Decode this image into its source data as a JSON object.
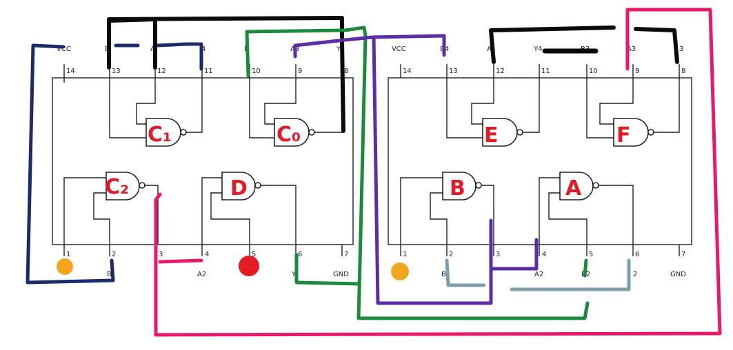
{
  "colors": {
    "navy": "#1b2a6b",
    "black": "#0a0a0a",
    "green": "#1c8a3a",
    "purple": "#5b2ea6",
    "pink": "#e8186b",
    "steel": "#7f9eab",
    "red_gate_label": "#e01a26",
    "yellow_dot": "#f3a51d",
    "red_dot": "#e31b23"
  },
  "chips": [
    {
      "pins_top": [
        {
          "num": "14",
          "label": "VCC"
        },
        {
          "num": "13",
          "label": "B"
        },
        {
          "num": "12",
          "label": "A"
        },
        {
          "num": "11",
          "label": "4"
        },
        {
          "num": "10",
          "label": "B"
        },
        {
          "num": "9",
          "label": "A3"
        },
        {
          "num": "8",
          "label": "Y"
        }
      ],
      "pins_bottom": [
        {
          "num": "1",
          "label": ""
        },
        {
          "num": "2",
          "label": "B"
        },
        {
          "num": "3",
          "label": ""
        },
        {
          "num": "4",
          "label": "A2"
        },
        {
          "num": "5",
          "label": ""
        },
        {
          "num": "6",
          "label": "Y"
        },
        {
          "num": "7",
          "label": "GND"
        }
      ],
      "gates": [
        "C₁",
        "C₀",
        "C₂",
        "D"
      ]
    },
    {
      "pins_top": [
        {
          "num": "14",
          "label": "VCC"
        },
        {
          "num": "13",
          "label": "B4"
        },
        {
          "num": "12",
          "label": "A"
        },
        {
          "num": "11",
          "label": "Y4"
        },
        {
          "num": "10",
          "label": "B3"
        },
        {
          "num": "9",
          "label": "A3"
        },
        {
          "num": "8",
          "label": "3"
        }
      ],
      "pins_bottom": [
        {
          "num": "1",
          "label": ""
        },
        {
          "num": "2",
          "label": "B"
        },
        {
          "num": "3",
          "label": ""
        },
        {
          "num": "4",
          "label": "A2"
        },
        {
          "num": "5",
          "label": "B2"
        },
        {
          "num": "6",
          "label": "2"
        },
        {
          "num": "7",
          "label": "GND"
        }
      ],
      "gates": [
        "E",
        "F",
        "B",
        "A"
      ]
    }
  ]
}
